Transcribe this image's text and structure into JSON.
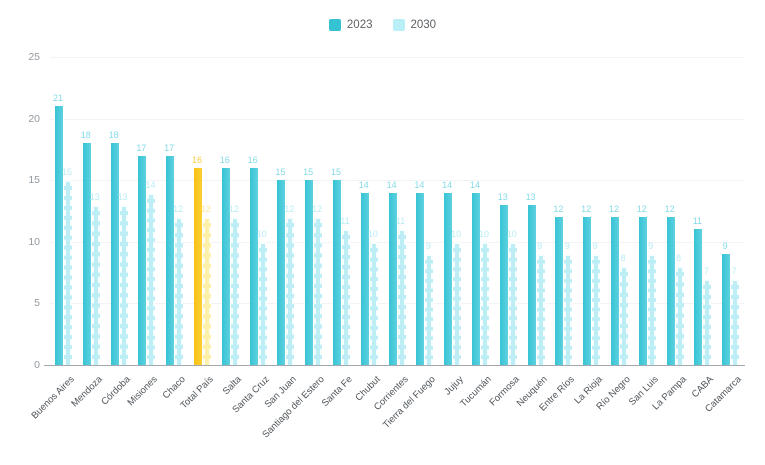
{
  "chart_data": {
    "type": "bar",
    "title": "",
    "xlabel": "",
    "ylabel": "",
    "categories": [
      "Buenos Aires",
      "Mendoza",
      "Córdoba",
      "Misiones",
      "Chaco",
      "Total País",
      "Salta",
      "Santa Cruz",
      "San Juan",
      "Santiago del Estero",
      "Santa Fe",
      "Chubut",
      "Corrientes",
      "Tierra del Fuego",
      "Jujuy",
      "Tucumán",
      "Formosa",
      "Neuquén",
      "Entre Ríos",
      "La Rioja",
      "Río Negro",
      "San Luis",
      "La Pampa",
      "CABA",
      "Catamarca"
    ],
    "series": [
      {
        "name": "2023",
        "values": [
          21,
          18,
          18,
          17,
          17,
          16,
          16,
          16,
          15,
          15,
          15,
          14,
          14,
          14,
          14,
          14,
          13,
          13,
          12,
          12,
          12,
          12,
          12,
          11,
          9
        ]
      },
      {
        "name": "2030",
        "values": [
          15,
          13,
          13,
          14,
          12,
          12,
          12,
          10,
          12,
          12,
          11,
          10,
          11,
          9,
          10,
          10,
          10,
          9,
          9,
          9,
          8,
          9,
          8,
          7,
          7
        ]
      }
    ],
    "highlight_category": "Total País",
    "ylim": [
      0,
      25
    ],
    "yticks": [
      0,
      5,
      10,
      15,
      20,
      25
    ],
    "grid": "horizontal-faint",
    "legend_position": "top-center",
    "data_labels": "shown-above-bars"
  },
  "colors": {
    "series_2023": "#35c3d4",
    "series_2023_light": "#5ed1df",
    "series_2030": "#bdeef5",
    "series_2030_legend": "#b9f0f7",
    "highlight_2023": "#f9c215",
    "highlight_2023_light": "#fbce31",
    "highlight_2030": "#fdf0a9",
    "label_2023": "#85dbe7",
    "label_2030": "#b9edf4",
    "label_highlight_2023": "#fbcd44",
    "label_highlight_2030": "#fbe79b"
  }
}
